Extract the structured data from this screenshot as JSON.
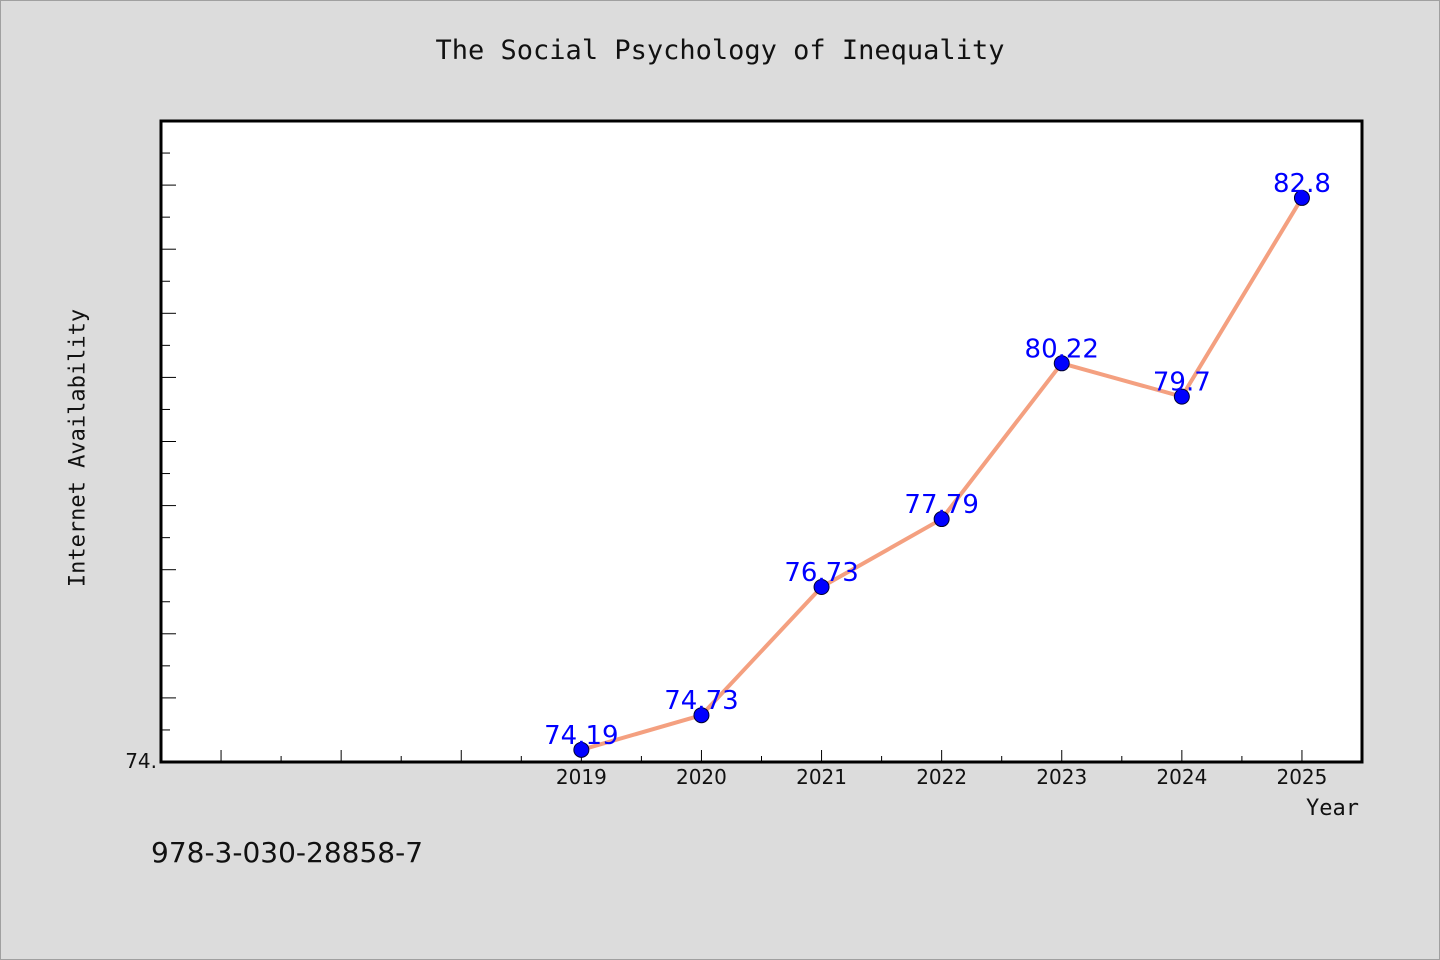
{
  "chart_data": {
    "type": "line",
    "title": "The Social Psychology of Inequality",
    "xlabel": "Year",
    "ylabel": "Internet Availability",
    "x": [
      2019,
      2020,
      2021,
      2022,
      2023,
      2024,
      2025
    ],
    "y": [
      74.19,
      74.73,
      76.73,
      77.79,
      80.22,
      79.7,
      82.8
    ],
    "data_labels": [
      "74.19",
      "74.73",
      "76.73",
      "77.79",
      "80.22",
      "79.7",
      "82.8"
    ],
    "x_tick_labels": [
      "2019",
      "2020",
      "2021",
      "2022",
      "2023",
      "2024",
      "2025"
    ],
    "y_tick_label": "74.",
    "xlim": [
      2015.5,
      2025.5
    ],
    "ylim": [
      74.0,
      84.0
    ],
    "grid": false,
    "line_color": "#f4a080",
    "marker_color": "#0000ff",
    "label_color": "#0000ff"
  },
  "footer": {
    "isbn": "978-3-030-28858-7"
  }
}
